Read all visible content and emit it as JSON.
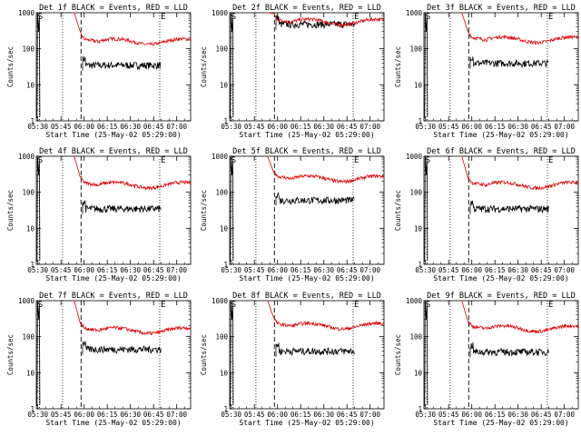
{
  "chart_data": [
    {
      "type": "line",
      "title": "Det 1f BLACK = Events, RED = LLD",
      "xlabel": "Start Time (25-May-02 05:29:00)",
      "ylabel": "Counts/sec",
      "x_ticks": [
        "05:30",
        "05:45",
        "06:00",
        "06:15",
        "06:30",
        "06:45",
        "07:00"
      ],
      "y_ticks": [
        "1",
        "10",
        "100",
        "1000"
      ],
      "y_scale": "log",
      "ylim": [
        1,
        1000
      ],
      "x_range_minutes": [
        0,
        100
      ],
      "markers": {
        "start_label": "S",
        "end_label": "E",
        "dotted_at": [
          2,
          17,
          80
        ],
        "dashed_at": [
          29
        ]
      },
      "series": [
        {
          "color": "#000000",
          "level": 35,
          "start": 29,
          "end": 81
        },
        {
          "color": "#e00000",
          "level": 160,
          "start": 29,
          "end": 100
        }
      ]
    },
    {
      "type": "line",
      "title": "Det 2f BLACK = Events, RED = LLD",
      "xlabel": "Start Time (25-May-02 05:29:00)",
      "ylabel": "Counts/sec",
      "x_ticks": [
        "05:30",
        "05:45",
        "06:00",
        "06:15",
        "06:30",
        "06:45",
        "07:00"
      ],
      "y_ticks": [
        "1",
        "10",
        "100",
        "1000"
      ],
      "y_scale": "log",
      "ylim": [
        1,
        1000
      ],
      "x_range_minutes": [
        0,
        100
      ],
      "markers": {
        "start_label": "S",
        "end_label": "E",
        "dotted_at": [
          2,
          17,
          80
        ],
        "dashed_at": [
          29
        ]
      },
      "series": [
        {
          "color": "#000000",
          "level": 480,
          "start": 29,
          "end": 81
        },
        {
          "color": "#e00000",
          "level": 560,
          "start": 29,
          "end": 100
        }
      ]
    },
    {
      "type": "line",
      "title": "Det 3f BLACK = Events, RED = LLD",
      "xlabel": "Start Time (25-May-02 05:29:00)",
      "ylabel": "Counts/sec",
      "x_ticks": [
        "05:30",
        "05:45",
        "06:00",
        "06:15",
        "06:30",
        "06:45",
        "07:00"
      ],
      "y_ticks": [
        "1",
        "10",
        "100",
        "1000"
      ],
      "y_scale": "log",
      "ylim": [
        1,
        1000
      ],
      "x_range_minutes": [
        0,
        100
      ],
      "markers": {
        "start_label": "S",
        "end_label": "E",
        "dotted_at": [
          2,
          17,
          80
        ],
        "dashed_at": [
          29
        ]
      },
      "series": [
        {
          "color": "#000000",
          "level": 40,
          "start": 29,
          "end": 81
        },
        {
          "color": "#e00000",
          "level": 180,
          "start": 29,
          "end": 100
        }
      ]
    },
    {
      "type": "line",
      "title": "Det 4f BLACK = Events, RED = LLD",
      "xlabel": "Start Time (25-May-02 05:29:00)",
      "ylabel": "Counts/sec",
      "x_ticks": [
        "05:30",
        "05:45",
        "06:00",
        "06:15",
        "06:30",
        "06:45",
        "07:00"
      ],
      "y_ticks": [
        "1",
        "10",
        "100",
        "1000"
      ],
      "y_scale": "log",
      "ylim": [
        1,
        1000
      ],
      "x_range_minutes": [
        0,
        100
      ],
      "markers": {
        "start_label": "S",
        "end_label": "E",
        "dotted_at": [
          2,
          17,
          80
        ],
        "dashed_at": [
          29
        ]
      },
      "series": [
        {
          "color": "#000000",
          "level": 35,
          "start": 29,
          "end": 81
        },
        {
          "color": "#e00000",
          "level": 160,
          "start": 29,
          "end": 100
        }
      ]
    },
    {
      "type": "line",
      "title": "Det 5f BLACK = Events, RED = LLD",
      "xlabel": "Start Time (25-May-02 05:29:00)",
      "ylabel": "Counts/sec",
      "x_ticks": [
        "05:30",
        "05:45",
        "06:00",
        "06:15",
        "06:30",
        "06:45",
        "07:00"
      ],
      "y_ticks": [
        "1",
        "10",
        "100",
        "1000"
      ],
      "y_scale": "log",
      "ylim": [
        1,
        1000
      ],
      "x_range_minutes": [
        0,
        100
      ],
      "markers": {
        "start_label": "S",
        "end_label": "E",
        "dotted_at": [
          2,
          17,
          80
        ],
        "dashed_at": [
          29
        ]
      },
      "series": [
        {
          "color": "#000000",
          "level": 60,
          "start": 29,
          "end": 81
        },
        {
          "color": "#e00000",
          "level": 240,
          "start": 29,
          "end": 100
        }
      ]
    },
    {
      "type": "line",
      "title": "Det 6f BLACK = Events, RED = LLD",
      "xlabel": "Start Time (25-May-02 05:29:00)",
      "ylabel": "Counts/sec",
      "x_ticks": [
        "05:30",
        "05:45",
        "06:00",
        "06:15",
        "06:30",
        "06:45",
        "07:00"
      ],
      "y_ticks": [
        "1",
        "10",
        "100",
        "1000"
      ],
      "y_scale": "log",
      "ylim": [
        1,
        1000
      ],
      "x_range_minutes": [
        0,
        100
      ],
      "markers": {
        "start_label": "S",
        "end_label": "E",
        "dotted_at": [
          2,
          17,
          80
        ],
        "dashed_at": [
          29
        ]
      },
      "series": [
        {
          "color": "#000000",
          "level": 35,
          "start": 29,
          "end": 81
        },
        {
          "color": "#e00000",
          "level": 160,
          "start": 29,
          "end": 100
        }
      ]
    },
    {
      "type": "line",
      "title": "Det 7f BLACK = Events, RED = LLD",
      "xlabel": "Start Time (25-May-02 05:29:00)",
      "ylabel": "Counts/sec",
      "x_ticks": [
        "05:30",
        "05:45",
        "06:00",
        "06:15",
        "06:30",
        "06:45",
        "07:00"
      ],
      "y_ticks": [
        "1",
        "10",
        "100",
        "1000"
      ],
      "y_scale": "log",
      "ylim": [
        1,
        1000
      ],
      "x_range_minutes": [
        0,
        100
      ],
      "markers": {
        "start_label": "S",
        "end_label": "E",
        "dotted_at": [
          2,
          17,
          80
        ],
        "dashed_at": [
          29
        ]
      },
      "series": [
        {
          "color": "#000000",
          "level": 45,
          "start": 29,
          "end": 81
        },
        {
          "color": "#e00000",
          "level": 150,
          "start": 29,
          "end": 100
        }
      ]
    },
    {
      "type": "line",
      "title": "Det 8f BLACK = Events, RED = LLD",
      "xlabel": "Start Time (25-May-02 05:29:00)",
      "ylabel": "Counts/sec",
      "x_ticks": [
        "05:30",
        "05:45",
        "06:00",
        "06:15",
        "06:30",
        "06:45",
        "07:00"
      ],
      "y_ticks": [
        "1",
        "10",
        "100",
        "1000"
      ],
      "y_scale": "log",
      "ylim": [
        1,
        1000
      ],
      "x_range_minutes": [
        0,
        100
      ],
      "markers": {
        "start_label": "S",
        "end_label": "E",
        "dotted_at": [
          2,
          17,
          80
        ],
        "dashed_at": [
          29
        ]
      },
      "series": [
        {
          "color": "#000000",
          "level": 40,
          "start": 29,
          "end": 81
        },
        {
          "color": "#e00000",
          "level": 200,
          "start": 29,
          "end": 100
        }
      ]
    },
    {
      "type": "line",
      "title": "Det 9f BLACK = Events, RED = LLD",
      "xlabel": "Start Time (25-May-02 05:29:00)",
      "ylabel": "Counts/sec",
      "x_ticks": [
        "05:30",
        "05:45",
        "06:00",
        "06:15",
        "06:30",
        "06:45",
        "07:00"
      ],
      "y_ticks": [
        "1",
        "10",
        "100",
        "1000"
      ],
      "y_scale": "log",
      "ylim": [
        1,
        1000
      ],
      "x_range_minutes": [
        0,
        100
      ],
      "markers": {
        "start_label": "S",
        "end_label": "E",
        "dotted_at": [
          2,
          17,
          80
        ],
        "dashed_at": [
          29
        ]
      },
      "series": [
        {
          "color": "#000000",
          "level": 38,
          "start": 29,
          "end": 81
        },
        {
          "color": "#e00000",
          "level": 170,
          "start": 29,
          "end": 100
        }
      ]
    }
  ]
}
